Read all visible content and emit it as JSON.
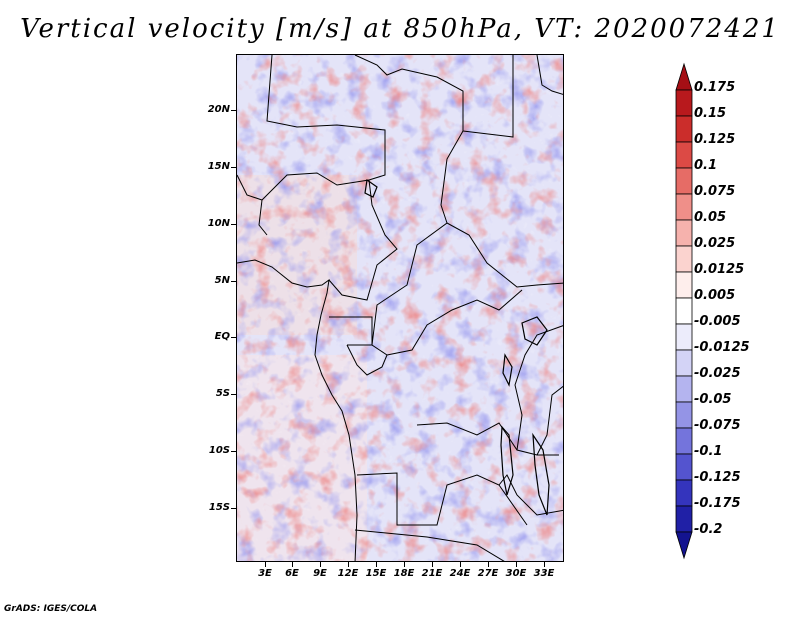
{
  "title": "Vertical velocity [m/s] at 850hPa, VT: 2020072421",
  "footer": "GrADS: IGES/COLA",
  "map": {
    "region": "Central Africa",
    "lat_ticks": [
      "20N",
      "15N",
      "10N",
      "5N",
      "EQ",
      "5S",
      "10S",
      "15S"
    ],
    "lon_ticks": [
      "3E",
      "6E",
      "9E",
      "12E",
      "15E",
      "18E",
      "21E",
      "24E",
      "27E",
      "30E",
      "33E"
    ]
  },
  "colorbar": {
    "labels": [
      "0.175",
      "0.15",
      "0.125",
      "0.1",
      "0.075",
      "0.05",
      "0.025",
      "0.0125",
      "0.005",
      "-0.005",
      "-0.0125",
      "-0.025",
      "-0.05",
      "-0.075",
      "-0.1",
      "-0.125",
      "-0.175",
      "-0.2"
    ],
    "colors": [
      "#a50f15",
      "#b8191d",
      "#cb2d2b",
      "#dc4a45",
      "#e66c66",
      "#ef8f89",
      "#f6b2ad",
      "#fbd3cf",
      "#feeeec",
      "#ffffff",
      "#ececfb",
      "#d3d3f6",
      "#b4b4ef",
      "#9494e6",
      "#7474dc",
      "#5454cf",
      "#3434bd",
      "#2020a6",
      "#13138f"
    ]
  }
}
